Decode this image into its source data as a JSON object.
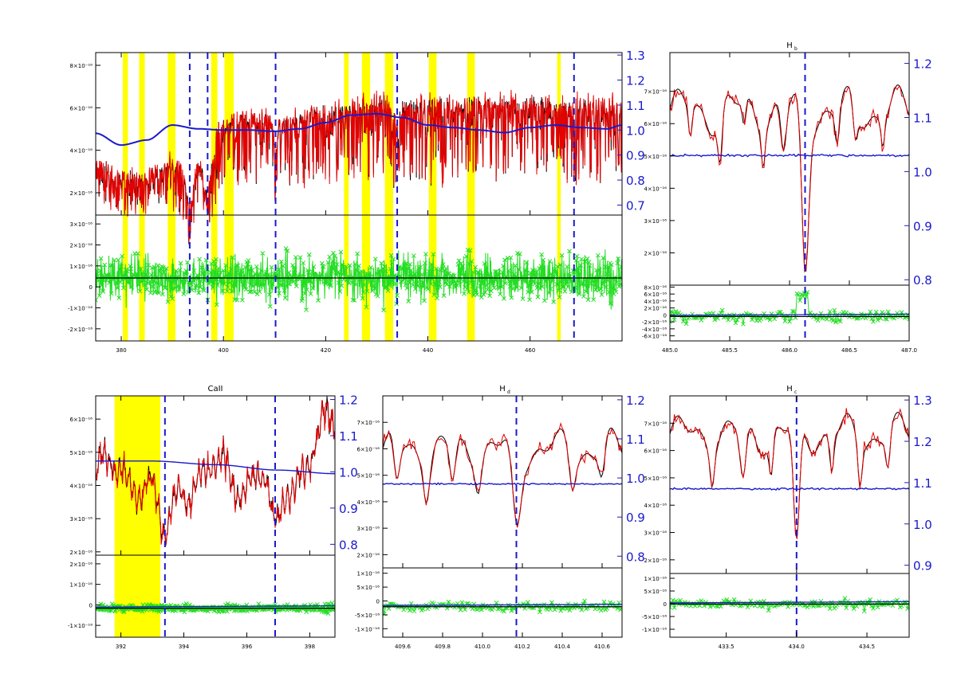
{
  "colors": {
    "observed": "#000000",
    "model": "#e60000",
    "continuum": "#1a1acc",
    "residual": "#22dd22",
    "masked_region": "#ffff00",
    "line_marker": "#1a1acc",
    "right_axis_text": "#1a1acc"
  },
  "chart_data": [
    {
      "id": "full",
      "type": "line",
      "title": "",
      "xlim": [
        375,
        478
      ],
      "xticks": [
        "380",
        "400",
        "420",
        "440",
        "460"
      ],
      "flux_ylim": [
        9.5e-17,
        8.6e-16
      ],
      "flux_yticks": [
        "2×10⁻¹⁶",
        "4×10⁻¹⁶",
        "6×10⁻¹⁶",
        "8×10⁻¹⁶"
      ],
      "ratio_ylim": [
        0.66,
        1.31
      ],
      "ratio_yticks": [
        "0.7",
        "0.8",
        "0.9",
        "1.0",
        "1.1",
        "1.2",
        "1.3"
      ],
      "resid_ylim": [
        -3.5e-17,
        3.5e-17
      ],
      "resid_yticks": [
        "-2×10⁻¹⁶",
        "-1×10⁻¹⁶",
        "0",
        "1×10⁻¹⁶",
        "2×10⁻¹⁶",
        "3×10⁻¹⁶"
      ],
      "line_markers": [
        393.4,
        396.9,
        410.2,
        434.0,
        468.6
      ],
      "masked_regions": [
        [
          380.3,
          381.3
        ],
        [
          383.5,
          384.6
        ],
        [
          389.1,
          390.6
        ],
        [
          397.6,
          398.8
        ],
        [
          400.2,
          402.0
        ],
        [
          423.6,
          424.5
        ],
        [
          427.1,
          428.7
        ],
        [
          431.6,
          433.2
        ],
        [
          440.2,
          441.7
        ],
        [
          447.7,
          449.2
        ],
        [
          465.3,
          466.0
        ]
      ],
      "continuum": {
        "x": [
          375,
          380,
          385,
          390,
          395,
          400,
          405,
          410,
          415,
          420,
          425,
          430,
          435,
          440,
          445,
          450,
          455,
          460,
          465,
          470,
          475,
          478
        ],
        "y": [
          0.987,
          0.94,
          0.96,
          1.02,
          1.005,
          1.0,
          1.0,
          0.995,
          1.005,
          1.03,
          1.06,
          1.065,
          1.05,
          1.02,
          1.01,
          1.0,
          0.99,
          1.01,
          1.02,
          1.01,
          1.005,
          1.02
        ]
      },
      "flux_envelope": {
        "x": [
          375,
          380,
          385,
          390,
          395,
          400,
          405,
          410,
          415,
          420,
          425,
          430,
          435,
          440,
          445,
          450,
          455,
          460,
          465,
          470,
          475,
          478
        ],
        "y": [
          3.9e-16,
          3.3e-16,
          3.2e-16,
          3.9e-16,
          4.1e-16,
          5.6e-16,
          5.8e-16,
          5.9e-16,
          6e-16,
          6.2e-16,
          6.4e-16,
          6.7e-16,
          6.6e-16,
          6.5e-16,
          6.5e-16,
          6.6e-16,
          6.6e-16,
          6.6e-16,
          6.5e-16,
          6.5e-16,
          6.4e-16,
          6.3e-16
        ]
      }
    },
    {
      "id": "hb",
      "type": "line",
      "title": "H",
      "title_sub": "b",
      "xlim": [
        485.0,
        487.0
      ],
      "xticks": [
        "485.0",
        "485.5",
        "486.0",
        "486.5",
        "487.0"
      ],
      "flux_ylim": [
        1e-16,
        8.2e-16
      ],
      "flux_yticks": [
        "2×10⁻¹⁶",
        "3×10⁻¹⁶",
        "4×10⁻¹⁶",
        "5×10⁻¹⁶",
        "6×10⁻¹⁶",
        "7×10⁻¹⁶"
      ],
      "ratio_ylim": [
        0.79,
        1.22
      ],
      "ratio_yticks": [
        "0.8",
        "0.9",
        "1.0",
        "1.1",
        "1.2"
      ],
      "resid_ylim": [
        -7e-17,
        9e-17
      ],
      "resid_yticks": [
        "-6×10⁻¹⁶",
        "-4×10⁻¹⁶",
        "-2×10⁻¹⁶",
        "0",
        "2×10⁻¹⁶",
        "4×10⁻¹⁶",
        "6×10⁻¹⁶",
        "8×10⁻¹⁶"
      ],
      "line_markers": [
        486.13
      ],
      "masked_regions": [],
      "continuum_level": 1.03,
      "lines": [
        [
          486.13,
          5e-16,
          0.04
        ],
        [
          485.42,
          1.5e-16,
          0.025
        ],
        [
          485.95,
          1.4e-16,
          0.03
        ],
        [
          485.78,
          1e-16,
          0.02
        ],
        [
          486.4,
          1.1e-16,
          0.025
        ],
        [
          486.55,
          1e-16,
          0.025
        ],
        [
          485.17,
          9e-17,
          0.02
        ],
        [
          485.62,
          8e-17,
          0.02
        ],
        [
          486.78,
          8e-17,
          0.02
        ]
      ],
      "base_flux": 6.4e-16
    },
    {
      "id": "caii",
      "type": "line",
      "title": "CaII",
      "xlim": [
        391.2,
        398.8
      ],
      "xticks": [
        "392",
        "394",
        "396",
        "398"
      ],
      "flux_ylim": [
        1.9e-16,
        6.7e-16
      ],
      "flux_yticks": [
        "2×10⁻¹⁶",
        "3×10⁻¹⁶",
        "4×10⁻¹⁶",
        "5×10⁻¹⁶",
        "6×10⁻¹⁶"
      ],
      "ratio_ylim": [
        0.77,
        1.21
      ],
      "ratio_yticks": [
        "0.8",
        "0.9",
        "1.0",
        "1.1",
        "1.2"
      ],
      "resid_ylim": [
        -1.2e-16,
        2.2e-16
      ],
      "resid_yticks": [
        "-1×10⁻¹⁶",
        "0",
        "1×10⁻¹⁶",
        "2×10⁻¹⁶"
      ],
      "line_markers": [
        393.4,
        396.9
      ],
      "masked_regions": [
        [
          391.8,
          393.25
        ]
      ],
      "continuum": {
        "x": [
          391.2,
          393.0,
          395.0,
          397.0,
          398.8
        ],
        "y": [
          1.03,
          1.03,
          1.02,
          1.005,
          0.995
        ]
      },
      "lines": [
        [
          393.4,
          2e-16,
          0.35
        ],
        [
          396.9,
          2e-16,
          0.25
        ]
      ],
      "base_flux": 4.3e-16
    },
    {
      "id": "hd",
      "type": "line",
      "title": "H",
      "title_sub": "d",
      "xlim": [
        409.5,
        410.7
      ],
      "xticks": [
        "409.6",
        "409.8",
        "410.0",
        "410.2",
        "410.4",
        "410.6"
      ],
      "flux_ylim": [
        1.5e-16,
        8e-16
      ],
      "flux_yticks": [
        "2×10⁻¹⁶",
        "3×10⁻¹⁶",
        "4×10⁻¹⁶",
        "5×10⁻¹⁶",
        "6×10⁻¹⁶",
        "7×10⁻¹⁶"
      ],
      "ratio_ylim": [
        0.77,
        1.21
      ],
      "ratio_yticks": [
        "0.8",
        "0.9",
        "1.0",
        "1.1",
        "1.2"
      ],
      "resid_ylim": [
        -1.1e-16,
        1.4e-16
      ],
      "resid_yticks": [
        "-1×10⁻¹⁶",
        "-5×10⁻¹⁶",
        "0",
        "5×10⁻¹⁶",
        "1×10⁻¹⁶"
      ],
      "line_markers": [
        410.17
      ],
      "masked_regions": [],
      "continuum_level": 0.985,
      "lines": [
        [
          410.17,
          3e-16,
          0.03
        ],
        [
          409.57,
          1.5e-16,
          0.02
        ],
        [
          409.72,
          1.3e-16,
          0.02
        ],
        [
          409.85,
          1.4e-16,
          0.02
        ],
        [
          409.98,
          1e-16,
          0.02
        ],
        [
          410.45,
          1.2e-16,
          0.02
        ],
        [
          410.6,
          1.1e-16,
          0.02
        ]
      ],
      "base_flux": 6e-16
    },
    {
      "id": "hg",
      "type": "line",
      "title": "H",
      "title_sub": "c",
      "xlim": [
        433.1,
        434.8
      ],
      "xticks": [
        "433.5",
        "434.0",
        "434.5"
      ],
      "flux_ylim": [
        1.5e-16,
        8e-16
      ],
      "flux_yticks": [
        "2×10⁻¹⁶",
        "3×10⁻¹⁶",
        "4×10⁻¹⁶",
        "5×10⁻¹⁶",
        "6×10⁻¹⁶",
        "7×10⁻¹⁶"
      ],
      "ratio_ylim": [
        0.88,
        1.31
      ],
      "ratio_yticks": [
        "0.9",
        "1.0",
        "1.1",
        "1.2",
        "1.3"
      ],
      "resid_ylim": [
        -1.3e-16,
        1.2e-16
      ],
      "resid_yticks": [
        "-1×10⁻¹⁶",
        "-5×10⁻¹⁶",
        "0",
        "5×10⁻¹⁶",
        "1×10⁻¹⁶"
      ],
      "line_markers": [
        434.0
      ],
      "masked_regions": [],
      "continuum_level": 1.085,
      "lines": [
        [
          434.0,
          4.5e-16,
          0.03
        ],
        [
          433.62,
          1.9e-16,
          0.03
        ],
        [
          433.4,
          1.2e-16,
          0.02
        ],
        [
          433.82,
          1.4e-16,
          0.02
        ],
        [
          434.25,
          1.3e-16,
          0.02
        ],
        [
          434.45,
          1.5e-16,
          0.02
        ],
        [
          434.65,
          1.2e-16,
          0.02
        ]
      ],
      "base_flux": 6.6e-16
    }
  ]
}
